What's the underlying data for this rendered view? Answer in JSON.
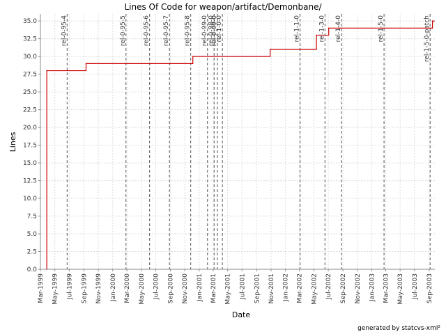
{
  "chart_data": {
    "type": "line",
    "title": "Lines Of Code for weapon/artifact/Demonbane/",
    "xlabel": "Date",
    "ylabel": "Lines",
    "ylim": [
      0,
      36
    ],
    "xlim": [
      "1999-03-01",
      "2003-09-25"
    ],
    "y_ticks": [
      "0.0",
      "2.5",
      "5.0",
      "7.5",
      "10.0",
      "12.5",
      "15.0",
      "17.5",
      "20.0",
      "22.5",
      "25.0",
      "27.5",
      "30.0",
      "32.5",
      "35.0"
    ],
    "x_ticks": [
      {
        "date": "1999-03-01",
        "label": "Mar-1999"
      },
      {
        "date": "1999-05-01",
        "label": "May-1999"
      },
      {
        "date": "1999-07-01",
        "label": "Jul-1999"
      },
      {
        "date": "1999-09-01",
        "label": "Sep-1999"
      },
      {
        "date": "1999-11-01",
        "label": "Nov-1999"
      },
      {
        "date": "2000-01-01",
        "label": "Jan-2000"
      },
      {
        "date": "2000-03-01",
        "label": "Mar-2000"
      },
      {
        "date": "2000-05-01",
        "label": "May-2000"
      },
      {
        "date": "2000-07-01",
        "label": "Jul-2000"
      },
      {
        "date": "2000-09-01",
        "label": "Sep-2000"
      },
      {
        "date": "2000-11-01",
        "label": "Nov-2000"
      },
      {
        "date": "2001-01-01",
        "label": "Jan-2001"
      },
      {
        "date": "2001-03-01",
        "label": "Mar-2001"
      },
      {
        "date": "2001-05-01",
        "label": "May-2001"
      },
      {
        "date": "2001-07-01",
        "label": "Jul-2001"
      },
      {
        "date": "2001-09-01",
        "label": "Sep-2001"
      },
      {
        "date": "2001-11-01",
        "label": "Nov-2001"
      },
      {
        "date": "2002-01-01",
        "label": "Jan-2002"
      },
      {
        "date": "2002-03-01",
        "label": "Mar-2002"
      },
      {
        "date": "2002-05-01",
        "label": "May-2002"
      },
      {
        "date": "2002-07-01",
        "label": "Jul-2002"
      },
      {
        "date": "2002-09-01",
        "label": "Sep-2002"
      },
      {
        "date": "2002-11-01",
        "label": "Nov-2002"
      },
      {
        "date": "2003-01-01",
        "label": "Jan-2003"
      },
      {
        "date": "2003-03-01",
        "label": "Mar-2003"
      },
      {
        "date": "2003-05-01",
        "label": "May-2003"
      },
      {
        "date": "2003-07-01",
        "label": "Jul-2003"
      },
      {
        "date": "2003-09-01",
        "label": "Sep-2003"
      }
    ],
    "series": [
      {
        "color": "#cc0000",
        "step": true,
        "points": [
          {
            "date": "1999-03-27",
            "value": 0
          },
          {
            "date": "1999-03-28",
            "value": 28
          },
          {
            "date": "1999-09-10",
            "value": 29
          },
          {
            "date": "2000-12-05",
            "value": 30
          },
          {
            "date": "2001-10-28",
            "value": 31
          },
          {
            "date": "2002-05-12",
            "value": 33
          },
          {
            "date": "2002-07-03",
            "value": 34
          },
          {
            "date": "2003-09-14",
            "value": 34
          },
          {
            "date": "2003-09-15",
            "value": 35
          },
          {
            "date": "2003-09-22",
            "value": 35
          }
        ]
      }
    ],
    "markers": [
      {
        "date": "1999-06-22",
        "label": "rel-0-95-4"
      },
      {
        "date": "2000-02-26",
        "label": "rel-0-95-5"
      },
      {
        "date": "2000-06-05",
        "label": "rel-0-95-6"
      },
      {
        "date": "2000-08-28",
        "label": "rel-0-95-7"
      },
      {
        "date": "2000-11-26",
        "label": "rel-0-95-8"
      },
      {
        "date": "2001-02-05",
        "label": "rel-0-99-0"
      },
      {
        "date": "2001-03-05",
        "label": "rel-0-98-0"
      },
      {
        "date": "2001-03-19",
        "label": "rel-0-99-0"
      },
      {
        "date": "2001-04-09",
        "label": "rel-1-0-0"
      },
      {
        "date": "2002-03-04",
        "label": "rel-1-1-0"
      },
      {
        "date": "2002-06-17",
        "label": "rel-1-3-0"
      },
      {
        "date": "2002-08-26",
        "label": "rel-1-4-0"
      },
      {
        "date": "2003-02-22",
        "label": "rel-1-5-0"
      },
      {
        "date": "2003-09-05",
        "label": "rel-1-5-0-patch"
      }
    ],
    "grid": true,
    "legend": "none"
  },
  "footer": "generated by statcvs-xml²"
}
